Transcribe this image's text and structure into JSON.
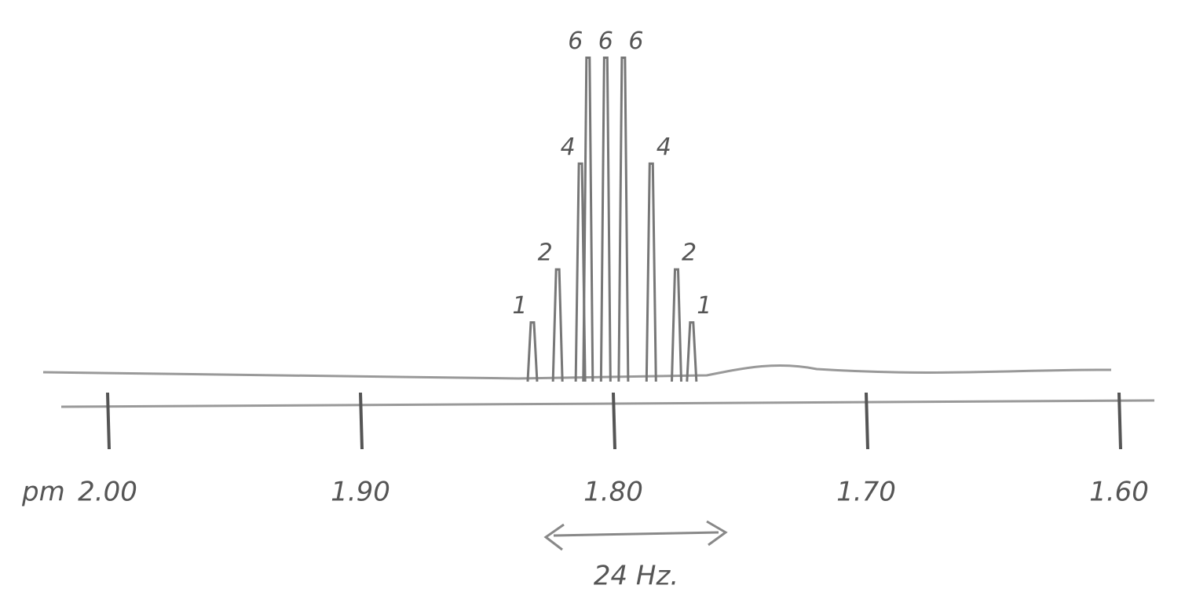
{
  "chart_data": {
    "type": "stick",
    "x": [
      1.832,
      1.822,
      1.813,
      1.81,
      1.803,
      1.796,
      1.785,
      1.775,
      1.769
    ],
    "values": [
      1,
      2,
      4,
      6,
      6,
      6,
      4,
      2,
      1
    ],
    "color": "#777777",
    "xlim": [
      2.0,
      1.6
    ],
    "xticks": [
      {
        "value": 2.0,
        "label": "2.00"
      },
      {
        "value": 1.9,
        "label": "1.90"
      },
      {
        "value": 1.8,
        "label": "1.80"
      },
      {
        "value": 1.7,
        "label": "1.70"
      },
      {
        "value": 1.6,
        "label": "1.60"
      }
    ],
    "ylim": [
      0,
      6.2
    ],
    "xlabel": "pm",
    "annotation": "24 Hz."
  }
}
